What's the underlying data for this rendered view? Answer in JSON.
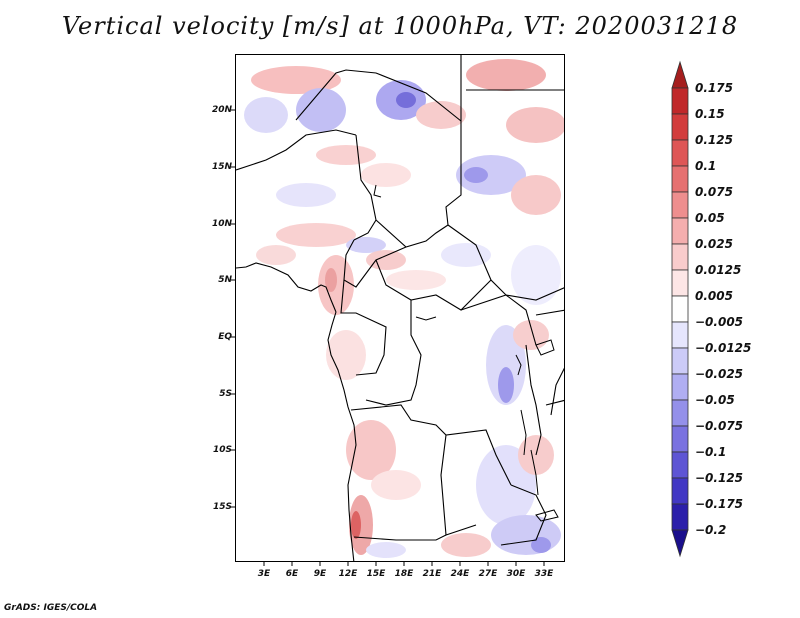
{
  "title": "Vertical velocity [m/s] at 1000hPa, VT: 2020031218",
  "credit": "GrADS: IGES/COLA",
  "map": {
    "variable": "Vertical velocity",
    "units": "m/s",
    "level": "1000hPa",
    "valid_time": "2020031218",
    "lat_labels": [
      "20N",
      "15N",
      "10N",
      "5N",
      "EQ",
      "5S",
      "10S",
      "15S"
    ],
    "lon_labels": [
      "3E",
      "6E",
      "9E",
      "12E",
      "15E",
      "18E",
      "21E",
      "24E",
      "27E",
      "30E",
      "33E"
    ]
  },
  "colorbar": {
    "labels": [
      "0.175",
      "0.15",
      "0.125",
      "0.1",
      "0.075",
      "0.05",
      "0.025",
      "0.0125",
      "0.005",
      "−0.005",
      "−0.0125",
      "−0.025",
      "−0.05",
      "−0.075",
      "−0.1",
      "−0.125",
      "−0.175",
      "−0.2"
    ],
    "colors": [
      "#a51e1e",
      "#c0282a",
      "#d23c3c",
      "#de5656",
      "#e67070",
      "#ee8e8e",
      "#f4aeae",
      "#f9cccc",
      "#fde6e6",
      "#ffffff",
      "#e6e6fd",
      "#cccbf7",
      "#b0aef2",
      "#9490ea",
      "#7a72e0",
      "#5e55d4",
      "#4238c4",
      "#2b1faa",
      "#1a0f8c"
    ]
  }
}
